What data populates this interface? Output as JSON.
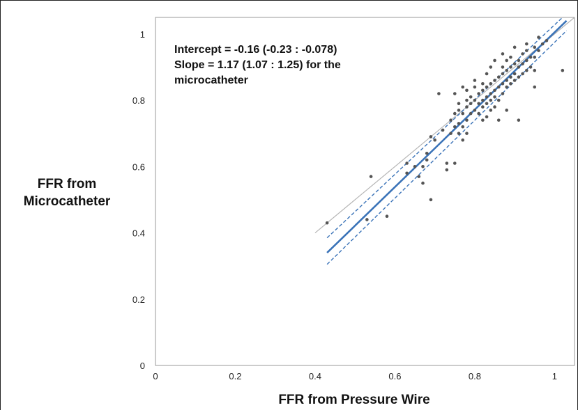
{
  "chart_data": {
    "type": "scatter",
    "xlabel": "FFR from Pressure Wire",
    "ylabel_lines": [
      "FFR from",
      "Microcatheter"
    ],
    "xlim": [
      0,
      1.05
    ],
    "ylim": [
      0,
      1.05
    ],
    "xticks": [
      0,
      0.2,
      0.4,
      0.6,
      0.8,
      1
    ],
    "yticks": [
      0,
      0.2,
      0.4,
      0.6,
      0.8,
      1
    ],
    "xtick_labels": [
      "0",
      "0.2",
      "0.4",
      "0.6",
      "0.8",
      "1"
    ],
    "ytick_labels": [
      "0",
      "0.2",
      "0.4",
      "0.6",
      "0.8",
      "1"
    ],
    "grid": false,
    "annotation_lines": [
      "Intercept = -0.16 (-0.23 : -0.078)",
      "Slope = 1.17 (1.07 : 1.25) for the",
      "microcatheter"
    ],
    "colors": {
      "points": "#555555",
      "regression": "#3a73b8",
      "identity": "#b5b5b5"
    },
    "identity_line": {
      "x": [
        0.4,
        1.05
      ],
      "y": [
        0.4,
        1.05
      ]
    },
    "regression_line": {
      "x": [
        0.43,
        1.03
      ],
      "y": [
        0.34,
        1.04
      ]
    },
    "ci_upper": {
      "x": [
        0.43,
        1.02
      ],
      "y": [
        0.385,
        1.05
      ]
    },
    "ci_lower": {
      "x": [
        0.43,
        1.03
      ],
      "y": [
        0.305,
        1.01
      ]
    },
    "points": [
      [
        0.43,
        0.43
      ],
      [
        0.53,
        0.44
      ],
      [
        0.54,
        0.57
      ],
      [
        0.58,
        0.45
      ],
      [
        0.63,
        0.58
      ],
      [
        0.63,
        0.61
      ],
      [
        0.65,
        0.6
      ],
      [
        0.66,
        0.57
      ],
      [
        0.67,
        0.55
      ],
      [
        0.67,
        0.6
      ],
      [
        0.68,
        0.62
      ],
      [
        0.68,
        0.64
      ],
      [
        0.69,
        0.5
      ],
      [
        0.69,
        0.69
      ],
      [
        0.7,
        0.68
      ],
      [
        0.71,
        0.82
      ],
      [
        0.72,
        0.71
      ],
      [
        0.73,
        0.59
      ],
      [
        0.73,
        0.61
      ],
      [
        0.74,
        0.7
      ],
      [
        0.74,
        0.74
      ],
      [
        0.75,
        0.61
      ],
      [
        0.75,
        0.72
      ],
      [
        0.75,
        0.76
      ],
      [
        0.75,
        0.82
      ],
      [
        0.76,
        0.7
      ],
      [
        0.76,
        0.73
      ],
      [
        0.76,
        0.77
      ],
      [
        0.76,
        0.79
      ],
      [
        0.77,
        0.68
      ],
      [
        0.77,
        0.72
      ],
      [
        0.77,
        0.76
      ],
      [
        0.77,
        0.84
      ],
      [
        0.78,
        0.7
      ],
      [
        0.78,
        0.74
      ],
      [
        0.78,
        0.78
      ],
      [
        0.78,
        0.8
      ],
      [
        0.78,
        0.83
      ],
      [
        0.79,
        0.76
      ],
      [
        0.79,
        0.79
      ],
      [
        0.79,
        0.81
      ],
      [
        0.8,
        0.77
      ],
      [
        0.8,
        0.8
      ],
      [
        0.8,
        0.84
      ],
      [
        0.8,
        0.86
      ],
      [
        0.81,
        0.76
      ],
      [
        0.81,
        0.79
      ],
      [
        0.81,
        0.82
      ],
      [
        0.82,
        0.74
      ],
      [
        0.82,
        0.78
      ],
      [
        0.82,
        0.8
      ],
      [
        0.82,
        0.83
      ],
      [
        0.82,
        0.85
      ],
      [
        0.83,
        0.75
      ],
      [
        0.83,
        0.79
      ],
      [
        0.83,
        0.81
      ],
      [
        0.83,
        0.84
      ],
      [
        0.83,
        0.88
      ],
      [
        0.84,
        0.77
      ],
      [
        0.84,
        0.8
      ],
      [
        0.84,
        0.82
      ],
      [
        0.84,
        0.85
      ],
      [
        0.84,
        0.9
      ],
      [
        0.85,
        0.78
      ],
      [
        0.85,
        0.81
      ],
      [
        0.85,
        0.83
      ],
      [
        0.85,
        0.86
      ],
      [
        0.85,
        0.92
      ],
      [
        0.86,
        0.74
      ],
      [
        0.86,
        0.8
      ],
      [
        0.86,
        0.84
      ],
      [
        0.86,
        0.87
      ],
      [
        0.87,
        0.82
      ],
      [
        0.87,
        0.85
      ],
      [
        0.87,
        0.88
      ],
      [
        0.87,
        0.9
      ],
      [
        0.87,
        0.94
      ],
      [
        0.88,
        0.77
      ],
      [
        0.88,
        0.84
      ],
      [
        0.88,
        0.86
      ],
      [
        0.88,
        0.89
      ],
      [
        0.88,
        0.92
      ],
      [
        0.89,
        0.85
      ],
      [
        0.89,
        0.87
      ],
      [
        0.89,
        0.9
      ],
      [
        0.89,
        0.93
      ],
      [
        0.9,
        0.86
      ],
      [
        0.9,
        0.88
      ],
      [
        0.9,
        0.91
      ],
      [
        0.9,
        0.96
      ],
      [
        0.91,
        0.74
      ],
      [
        0.91,
        0.87
      ],
      [
        0.91,
        0.9
      ],
      [
        0.91,
        0.92
      ],
      [
        0.92,
        0.88
      ],
      [
        0.92,
        0.91
      ],
      [
        0.92,
        0.94
      ],
      [
        0.93,
        0.89
      ],
      [
        0.93,
        0.92
      ],
      [
        0.93,
        0.95
      ],
      [
        0.93,
        0.97
      ],
      [
        0.94,
        0.9
      ],
      [
        0.94,
        0.93
      ],
      [
        0.95,
        0.84
      ],
      [
        0.95,
        0.89
      ],
      [
        0.95,
        0.93
      ],
      [
        0.95,
        0.96
      ],
      [
        0.96,
        0.95
      ],
      [
        0.96,
        0.99
      ],
      [
        0.97,
        0.97
      ],
      [
        0.98,
        0.98
      ],
      [
        1.02,
        0.89
      ]
    ]
  }
}
